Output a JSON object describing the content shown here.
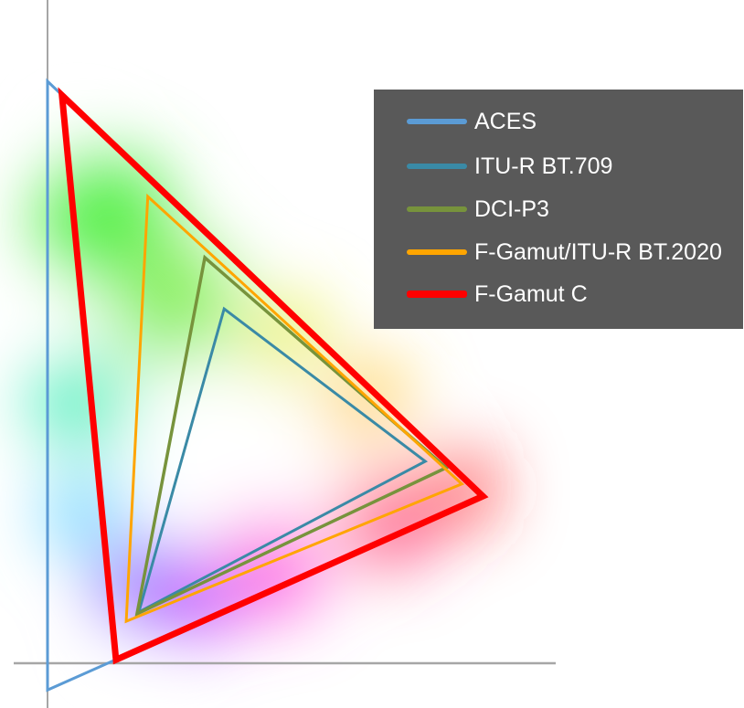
{
  "chart_data": {
    "type": "line",
    "title": "",
    "xlabel": "",
    "ylabel": "",
    "xlim": [
      -0.05,
      0.85
    ],
    "ylim": [
      -0.08,
      1.14
    ],
    "grid": false,
    "legend_placement": "top-right",
    "series": [
      {
        "name": "ACES",
        "color": "#5b9bd5",
        "points": [
          [
            0.0,
            1.0
          ],
          [
            0.725,
            0.287
          ],
          [
            0.0,
            -0.046
          ]
        ]
      },
      {
        "name": "ITU-R BT.709",
        "color": "#3a8aa6",
        "points": [
          [
            0.294,
            0.609
          ],
          [
            0.629,
            0.347
          ],
          [
            0.152,
            0.088
          ]
        ]
      },
      {
        "name": "DCI-P3",
        "color": "#77933c",
        "points": [
          [
            0.262,
            0.697
          ],
          [
            0.664,
            0.336
          ],
          [
            0.149,
            0.085
          ]
        ]
      },
      {
        "name": "F-Gamut/ITU-R BT.2020",
        "color": "#ffa500",
        "points": [
          [
            0.167,
            0.802
          ],
          [
            0.69,
            0.308
          ],
          [
            0.131,
            0.072
          ]
        ]
      },
      {
        "name": "F-Gamut C",
        "color": "#ff0000",
        "points": [
          [
            0.024,
            0.976
          ],
          [
            0.725,
            0.287
          ],
          [
            0.114,
            0.006
          ]
        ]
      }
    ]
  }
}
